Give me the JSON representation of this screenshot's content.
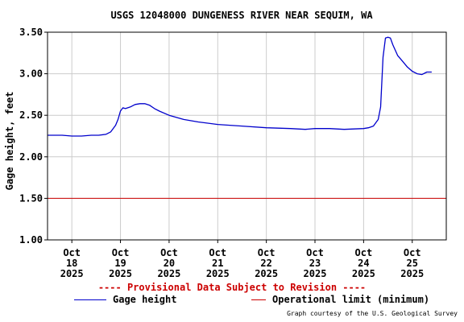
{
  "chart_data": {
    "type": "line",
    "title": "USGS 12048000 DUNGENESS RIVER NEAR SEQUIM, WA",
    "ylabel": "Gage height, feet",
    "xlabel": "",
    "ylim": [
      1.0,
      3.5
    ],
    "xlim": [
      17.5,
      25.7
    ],
    "grid": true,
    "y_ticks": [
      "1.00",
      "1.50",
      "2.00",
      "2.50",
      "3.00",
      "3.50"
    ],
    "x_ticks": [
      {
        "x": 18,
        "month": "Oct",
        "day": "18",
        "year": "2025"
      },
      {
        "x": 19,
        "month": "Oct",
        "day": "19",
        "year": "2025"
      },
      {
        "x": 20,
        "month": "Oct",
        "day": "20",
        "year": "2025"
      },
      {
        "x": 21,
        "month": "Oct",
        "day": "21",
        "year": "2025"
      },
      {
        "x": 22,
        "month": "Oct",
        "day": "22",
        "year": "2025"
      },
      {
        "x": 23,
        "month": "Oct",
        "day": "23",
        "year": "2025"
      },
      {
        "x": 24,
        "month": "Oct",
        "day": "24",
        "year": "2025"
      },
      {
        "x": 25,
        "month": "Oct",
        "day": "25",
        "year": "2025"
      }
    ],
    "series": [
      {
        "name": "Gage height",
        "color": "#0000cc",
        "x": [
          17.5,
          17.8,
          18.0,
          18.2,
          18.4,
          18.55,
          18.7,
          18.8,
          18.9,
          18.95,
          19.0,
          19.05,
          19.1,
          19.2,
          19.3,
          19.4,
          19.5,
          19.6,
          19.7,
          19.8,
          20.0,
          20.3,
          20.6,
          21.0,
          21.5,
          22.0,
          22.5,
          22.8,
          23.0,
          23.3,
          23.6,
          24.0,
          24.1,
          24.2,
          24.3,
          24.35,
          24.4,
          24.45,
          24.5,
          24.55,
          24.6,
          24.7,
          24.8,
          24.9,
          25.0,
          25.1,
          25.2,
          25.3,
          25.4
        ],
        "y": [
          2.26,
          2.26,
          2.25,
          2.25,
          2.26,
          2.26,
          2.27,
          2.3,
          2.38,
          2.45,
          2.55,
          2.59,
          2.58,
          2.6,
          2.63,
          2.64,
          2.64,
          2.62,
          2.58,
          2.55,
          2.5,
          2.45,
          2.42,
          2.39,
          2.37,
          2.35,
          2.34,
          2.33,
          2.34,
          2.34,
          2.33,
          2.34,
          2.35,
          2.37,
          2.45,
          2.6,
          3.2,
          3.43,
          3.44,
          3.43,
          3.35,
          3.22,
          3.15,
          3.08,
          3.03,
          3.0,
          2.99,
          3.02,
          3.02
        ]
      }
    ],
    "reference_lines": [
      {
        "name": "Operational limit (minimum)",
        "y": 1.5,
        "color": "#cc0000"
      }
    ],
    "legend": "bottom"
  },
  "notice": "---- Provisional Data Subject to Revision ----",
  "credit": "Graph courtesy of the U.S. Geological Survey",
  "colors": {
    "series": "#0000cc",
    "limit": "#cc0000",
    "notice": "#cc0000",
    "grid": "#cccccc"
  }
}
